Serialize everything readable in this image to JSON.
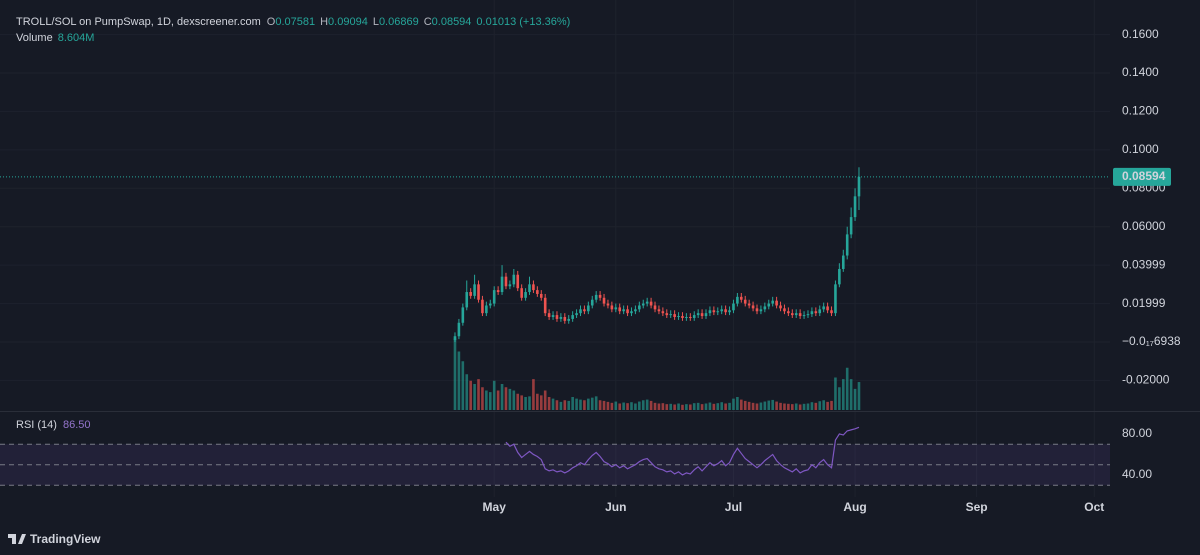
{
  "chart_data": {
    "type": "candlestick",
    "title": "TROLL/SOL on PumpSwap, 1D, dexscreener.com",
    "ohlc_labels": [
      "O",
      "H",
      "L",
      "C"
    ],
    "change_label": "0.01013 (+13.36%)",
    "volume_name": "Volume",
    "volume_label": "8.604M",
    "up_color": "#26a69a",
    "down_color": "#ef5350",
    "grid": true,
    "open": [
      0.001,
      0.003,
      0.01,
      0.018,
      0.026,
      0.024,
      0.03,
      0.022,
      0.015,
      0.019,
      0.02,
      0.027,
      0.026,
      0.034,
      0.029,
      0.03,
      0.035,
      0.028,
      0.023,
      0.026,
      0.03,
      0.027,
      0.025,
      0.023,
      0.015,
      0.013,
      0.014,
      0.012,
      0.013,
      0.011,
      0.012,
      0.014,
      0.015,
      0.017,
      0.016,
      0.019,
      0.022,
      0.0245,
      0.023,
      0.02,
      0.019,
      0.017,
      0.018,
      0.016,
      0.017,
      0.015,
      0.016,
      0.017,
      0.019,
      0.02,
      0.021,
      0.019,
      0.017,
      0.016,
      0.015,
      0.014,
      0.0145,
      0.013,
      0.0135,
      0.0125,
      0.013,
      0.0125,
      0.014,
      0.015,
      0.0135,
      0.015,
      0.0165,
      0.0155,
      0.016,
      0.017,
      0.0155,
      0.0165,
      0.02,
      0.0235,
      0.022,
      0.02,
      0.019,
      0.0175,
      0.016,
      0.017,
      0.0185,
      0.02,
      0.0215,
      0.019,
      0.0175,
      0.016,
      0.015,
      0.014,
      0.015,
      0.0135,
      0.014,
      0.0145,
      0.016,
      0.015,
      0.017,
      0.0185,
      0.0165,
      0.015,
      0.03,
      0.038,
      0.045,
      0.056,
      0.065,
      0.07581
    ],
    "high": [
      0.005,
      0.012,
      0.02,
      0.032,
      0.028,
      0.035,
      0.032,
      0.024,
      0.021,
      0.022,
      0.029,
      0.029,
      0.04,
      0.036,
      0.032,
      0.038,
      0.037,
      0.03,
      0.028,
      0.034,
      0.032,
      0.029,
      0.027,
      0.025,
      0.017,
      0.016,
      0.016,
      0.015,
      0.015,
      0.014,
      0.016,
      0.017,
      0.019,
      0.019,
      0.021,
      0.024,
      0.0265,
      0.0265,
      0.025,
      0.022,
      0.021,
      0.02,
      0.02,
      0.019,
      0.019,
      0.018,
      0.019,
      0.021,
      0.022,
      0.023,
      0.023,
      0.021,
      0.019,
      0.018,
      0.017,
      0.0165,
      0.0165,
      0.0155,
      0.0155,
      0.015,
      0.015,
      0.016,
      0.017,
      0.017,
      0.017,
      0.0185,
      0.0185,
      0.018,
      0.019,
      0.019,
      0.0185,
      0.022,
      0.0255,
      0.0255,
      0.024,
      0.022,
      0.021,
      0.0195,
      0.019,
      0.0205,
      0.022,
      0.0235,
      0.0235,
      0.021,
      0.0195,
      0.018,
      0.017,
      0.017,
      0.017,
      0.016,
      0.0165,
      0.018,
      0.018,
      0.019,
      0.0205,
      0.0205,
      0.0185,
      0.032,
      0.041,
      0.048,
      0.06,
      0.07,
      0.08,
      0.09094
    ],
    "low": [
      0.0,
      0.0015,
      0.0085,
      0.0165,
      0.0225,
      0.0225,
      0.0205,
      0.0135,
      0.0135,
      0.0175,
      0.0185,
      0.0245,
      0.0245,
      0.0275,
      0.0275,
      0.0285,
      0.0265,
      0.0215,
      0.0215,
      0.0245,
      0.0255,
      0.0235,
      0.0215,
      0.0135,
      0.0115,
      0.0115,
      0.0105,
      0.0105,
      0.0095,
      0.0095,
      0.0105,
      0.0125,
      0.0135,
      0.0145,
      0.0145,
      0.0175,
      0.0205,
      0.0215,
      0.0185,
      0.0175,
      0.0155,
      0.0155,
      0.0145,
      0.0145,
      0.0135,
      0.0135,
      0.0145,
      0.0155,
      0.0175,
      0.0185,
      0.0175,
      0.0155,
      0.0145,
      0.0135,
      0.0125,
      0.0125,
      0.0115,
      0.0115,
      0.011,
      0.011,
      0.011,
      0.011,
      0.0125,
      0.012,
      0.012,
      0.0135,
      0.014,
      0.014,
      0.0145,
      0.014,
      0.014,
      0.015,
      0.0185,
      0.0205,
      0.0185,
      0.0175,
      0.016,
      0.0145,
      0.0145,
      0.0155,
      0.017,
      0.0185,
      0.0175,
      0.016,
      0.0145,
      0.0135,
      0.0125,
      0.0125,
      0.012,
      0.012,
      0.0125,
      0.013,
      0.0135,
      0.0135,
      0.0155,
      0.015,
      0.0135,
      0.0135,
      0.0285,
      0.0365,
      0.043,
      0.054,
      0.063,
      0.06869
    ],
    "close": [
      0.003,
      0.01,
      0.018,
      0.026,
      0.024,
      0.03,
      0.022,
      0.015,
      0.019,
      0.02,
      0.027,
      0.026,
      0.034,
      0.029,
      0.03,
      0.035,
      0.028,
      0.023,
      0.026,
      0.03,
      0.027,
      0.025,
      0.023,
      0.015,
      0.013,
      0.014,
      0.012,
      0.013,
      0.011,
      0.012,
      0.014,
      0.015,
      0.017,
      0.016,
      0.019,
      0.022,
      0.0245,
      0.023,
      0.02,
      0.019,
      0.017,
      0.018,
      0.016,
      0.017,
      0.015,
      0.016,
      0.017,
      0.019,
      0.02,
      0.021,
      0.019,
      0.017,
      0.016,
      0.015,
      0.014,
      0.0145,
      0.013,
      0.0135,
      0.0125,
      0.013,
      0.0125,
      0.014,
      0.015,
      0.0135,
      0.015,
      0.0165,
      0.0155,
      0.016,
      0.017,
      0.0155,
      0.0165,
      0.02,
      0.0235,
      0.022,
      0.02,
      0.019,
      0.0175,
      0.016,
      0.017,
      0.0185,
      0.02,
      0.0215,
      0.019,
      0.0175,
      0.016,
      0.015,
      0.014,
      0.015,
      0.0135,
      0.014,
      0.0145,
      0.016,
      0.015,
      0.017,
      0.0185,
      0.0165,
      0.015,
      0.03,
      0.038,
      0.045,
      0.056,
      0.065,
      0.07581,
      0.08594
    ],
    "volume": [
      22000000,
      18000000,
      15000000,
      11000000,
      9000000,
      8000000,
      9500000,
      7000000,
      6000000,
      5500000,
      9000000,
      6000000,
      8000000,
      7000000,
      6500000,
      6000000,
      5000000,
      4500000,
      4000000,
      4200000,
      9500000,
      5000000,
      4500000,
      6000000,
      4000000,
      3500000,
      3000000,
      2500000,
      3000000,
      2800000,
      4000000,
      3500000,
      3200000,
      3000000,
      3500000,
      3800000,
      4200000,
      3000000,
      2800000,
      2500000,
      2200000,
      2600000,
      2000000,
      2300000,
      2100000,
      2400000,
      2000000,
      2600000,
      3000000,
      3200000,
      2800000,
      2200000,
      2000000,
      2100000,
      1800000,
      1900000,
      1700000,
      2000000,
      1600000,
      1800000,
      1700000,
      2100000,
      2200000,
      1800000,
      2000000,
      2300000,
      1900000,
      2100000,
      2400000,
      2000000,
      2200000,
      3500000,
      4000000,
      3200000,
      2800000,
      2500000,
      2200000,
      2000000,
      2300000,
      2600000,
      2900000,
      3100000,
      2600000,
      2200000,
      2000000,
      1900000,
      1800000,
      2000000,
      1700000,
      1900000,
      2000000,
      2400000,
      2200000,
      2700000,
      3000000,
      2500000,
      2800000,
      10000000,
      7000000,
      9500000,
      13000000,
      9500000,
      6500000,
      8604000
    ],
    "volume_lim": [
      0,
      40000000
    ],
    "ylim": [
      -0.0354,
      0.178
    ],
    "yticks": [
      {
        "value": 0.16,
        "label": "0.1600"
      },
      {
        "value": 0.14,
        "label": "0.1400"
      },
      {
        "value": 0.12,
        "label": "0.1200"
      },
      {
        "value": 0.1,
        "label": "0.1000"
      },
      {
        "value": 0.08,
        "label": "0.08000"
      },
      {
        "value": 0.06,
        "label": "0.06000"
      },
      0.03999,
      0.01999,
      {
        "value": -6.938e-19,
        "label": "−0.0₁₇6938"
      },
      {
        "value": -0.02,
        "label": "-0.02000"
      }
    ],
    "xlim": [
      -116,
      167
    ],
    "xticks": [
      {
        "value": 10,
        "label": "May"
      },
      {
        "value": 41,
        "label": "Jun"
      },
      {
        "value": 71,
        "label": "Jul"
      },
      {
        "value": 102,
        "label": "Aug"
      },
      {
        "value": 133,
        "label": "Sep"
      },
      {
        "value": 163,
        "label": "Oct"
      }
    ],
    "rsi_name": "RSI (14)",
    "rsi_label": "86.50",
    "rsi_color": "#7e57c2",
    "rsi": [
      null,
      null,
      null,
      null,
      null,
      null,
      null,
      null,
      null,
      null,
      null,
      null,
      null,
      72,
      68,
      70,
      62,
      57,
      60,
      63,
      60,
      58,
      55,
      46,
      44,
      45,
      43,
      44,
      42,
      44,
      47,
      49,
      52,
      50,
      55,
      59,
      62,
      58,
      53,
      51,
      48,
      50,
      47,
      49,
      46,
      48,
      50,
      53,
      55,
      56,
      52,
      48,
      46,
      45,
      43,
      44,
      41,
      43,
      40,
      42,
      41,
      45,
      48,
      44,
      48,
      52,
      49,
      51,
      54,
      49,
      52,
      60,
      66,
      61,
      56,
      53,
      50,
      47,
      50,
      54,
      57,
      60,
      54,
      50,
      47,
      45,
      43,
      46,
      42,
      44,
      45,
      50,
      47,
      52,
      55,
      50,
      47,
      74,
      80,
      79,
      83,
      84,
      85,
      86.5
    ],
    "rsi_lim": [
      18.5,
      98.5
    ],
    "rsi_ticks": [
      {
        "value": 80,
        "label": "80.00"
      },
      {
        "value": 40,
        "label": "40.00"
      }
    ],
    "rsi_levels": [
      70,
      50,
      30
    ],
    "branding": "TradingView"
  }
}
